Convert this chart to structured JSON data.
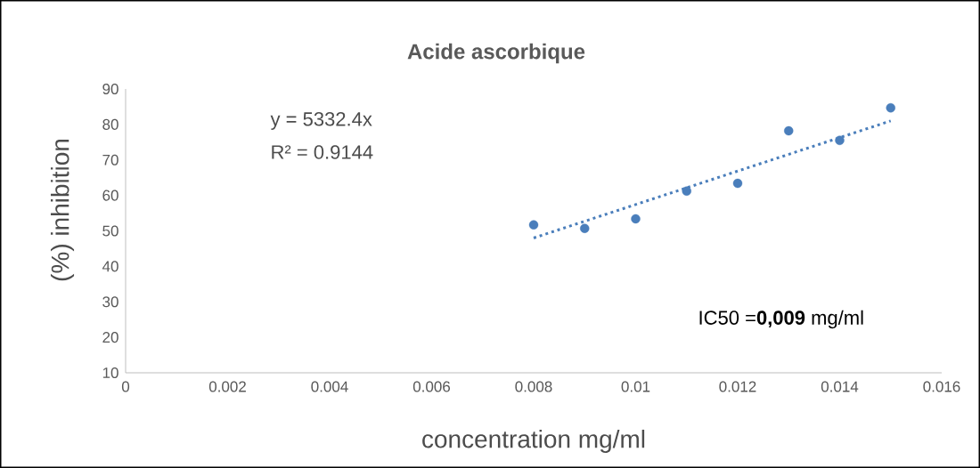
{
  "chart_data": {
    "type": "scatter",
    "title": "Acide ascorbique",
    "xlabel": "concentration mg/ml",
    "ylabel": "(%) inhibition",
    "marker": "circle",
    "xlim": [
      0,
      0.016
    ],
    "xticks": [
      0,
      0.002,
      0.004,
      0.006,
      0.008,
      0.01,
      0.012,
      0.014,
      0.016
    ],
    "ylim": [
      10,
      90
    ],
    "yticks": [
      10,
      20,
      30,
      40,
      50,
      60,
      70,
      80,
      90
    ],
    "series": [
      {
        "color": "#4a7ebb",
        "x": [
          0.008,
          0.009,
          0.01,
          0.011,
          0.012,
          0.013,
          0.014,
          0.015
        ],
        "values": [
          51.7,
          50.7,
          53.4,
          61.2,
          63.4,
          78.2,
          75.5,
          84.7
        ]
      },
      {
        "type": "line",
        "color": "#4a7ebb",
        "line_style": "dotted",
        "marker": "none",
        "x": [
          0.008,
          0.015
        ],
        "values": [
          48,
          81
        ]
      }
    ],
    "annotations": [
      "y = 5332.4x",
      "R² = 0.9144",
      "IC50 =**0,009** mg/ml"
    ]
  }
}
